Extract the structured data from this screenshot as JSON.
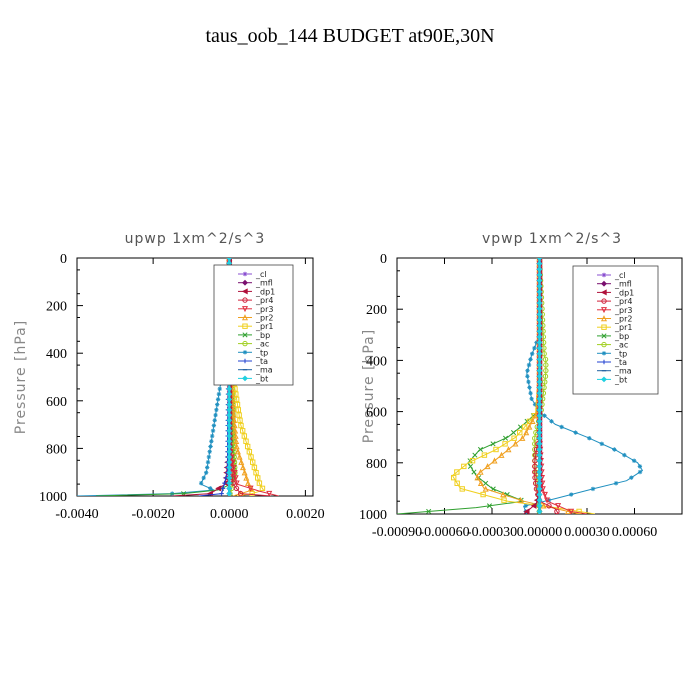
{
  "page_title": "taus_oob_144  BUDGET at90E,30N",
  "legend_entries": [
    {
      "name": "_cl",
      "color": "#8a4fd0",
      "marker": "star"
    },
    {
      "name": "_mfl",
      "color": "#7a0f6e",
      "marker": "diamond"
    },
    {
      "name": "_dp1",
      "color": "#b0103a",
      "marker": "tri-left"
    },
    {
      "name": "_pr4",
      "color": "#d0203a",
      "marker": "circle"
    },
    {
      "name": "_pr3",
      "color": "#e03040",
      "marker": "tri-down"
    },
    {
      "name": "_pr2",
      "color": "#f0a020",
      "marker": "tri-up"
    },
    {
      "name": "_pr1",
      "color": "#f0d020",
      "marker": "square"
    },
    {
      "name": "_bp",
      "color": "#30a030",
      "marker": "x"
    },
    {
      "name": "_ac",
      "color": "#a0d020",
      "marker": "circle"
    },
    {
      "name": "_tp",
      "color": "#2090c0",
      "marker": "star"
    },
    {
      "name": "_ta",
      "color": "#2040d0",
      "marker": "plus"
    },
    {
      "name": "_ma",
      "color": "#2060a0",
      "marker": "dash"
    },
    {
      "name": "_bt",
      "color": "#20d0e0",
      "marker": "diamond"
    }
  ],
  "chart_data": [
    {
      "type": "line",
      "title": "upwp   1xm^2/s^3",
      "xlabel": "",
      "ylabel": "Pressure [hPa]",
      "xlim": [
        -0.004,
        0.0022
      ],
      "ylim": [
        1000,
        0
      ],
      "x_tick_labels": [
        "-0.0040",
        "-0.0020",
        "0.0000",
        "0.0020"
      ],
      "x_ticks": [
        -0.004,
        -0.002,
        0.0,
        0.002
      ],
      "y_tick_labels": [
        "0",
        "200",
        "400",
        "600",
        "800",
        "1000"
      ],
      "y_ticks": [
        0,
        200,
        400,
        600,
        800,
        1000
      ],
      "legend": "top-right",
      "series": [
        {
          "name": "_tp",
          "pressure": [
            0,
            200,
            400,
            500,
            600,
            700,
            800,
            900,
            950,
            975,
            990,
            1000
          ],
          "values": [
            0,
            0,
            -0.0001,
            -0.0002,
            -0.0003,
            -0.0004,
            -0.0005,
            -0.0006,
            -0.00075,
            -0.0004,
            -0.0015,
            -0.004
          ]
        },
        {
          "name": "_bp",
          "pressure": [
            0,
            300,
            500,
            600,
            700,
            800,
            900,
            950,
            975,
            990,
            1000
          ],
          "values": [
            0,
            0,
            5e-05,
            0.0001,
            0.0001,
            0.0001,
            0.00015,
            5e-05,
            -0.0003,
            -0.0012,
            -0.0035
          ]
        },
        {
          "name": "_ac",
          "pressure": [
            0,
            400,
            500,
            600,
            700,
            800,
            900,
            950,
            975,
            1000
          ],
          "values": [
            0,
            2e-05,
            5e-05,
            0.0001,
            0.0001,
            0.00012,
            0.00015,
            0.0001,
            5e-05,
            0.0
          ]
        },
        {
          "name": "_pr1",
          "pressure": [
            0,
            400,
            500,
            600,
            700,
            800,
            900,
            950,
            975,
            990,
            1000
          ],
          "values": [
            0,
            5e-05,
            0.0001,
            0.0002,
            0.0003,
            0.0005,
            0.0007,
            0.0008,
            0.0009,
            0.0006,
            0.0002
          ]
        },
        {
          "name": "_pr2",
          "pressure": [
            0,
            400,
            600,
            800,
            900,
            950,
            975,
            1000
          ],
          "values": [
            0,
            2e-05,
            8e-05,
            0.0002,
            0.0004,
            0.0005,
            0.0006,
            0.0001
          ]
        },
        {
          "name": "_pr3",
          "pressure": [
            0,
            800,
            950,
            980,
            1000
          ],
          "values": [
            0,
            2e-05,
            0.0002,
            0.0008,
            0.0013
          ]
        },
        {
          "name": "_pr4",
          "pressure": [
            0,
            800,
            950,
            990,
            1000
          ],
          "values": [
            0,
            1e-05,
            0.0001,
            0.0003,
            0.0011
          ]
        },
        {
          "name": "_dp1",
          "pressure": [
            0,
            800,
            950,
            990,
            1000
          ],
          "values": [
            0,
            -1e-05,
            -0.0001,
            -0.0005,
            -0.0015
          ]
        },
        {
          "name": "_ta",
          "pressure": [
            0,
            900,
            990,
            1000
          ],
          "values": [
            0,
            -5e-05,
            -0.0002,
            -0.0008
          ]
        },
        {
          "name": "_mfl",
          "pressure": [
            0,
            1000
          ],
          "values": [
            0,
            0
          ]
        },
        {
          "name": "_cl",
          "pressure": [
            0,
            1000
          ],
          "values": [
            0,
            0
          ]
        },
        {
          "name": "_ma",
          "pressure": [
            0,
            1000
          ],
          "values": [
            0,
            0
          ]
        },
        {
          "name": "_bt",
          "pressure": [
            0,
            1000
          ],
          "values": [
            0,
            0
          ]
        }
      ]
    },
    {
      "type": "line",
      "title": "vpwp   1xm^2/s^3",
      "xlabel": "",
      "ylabel": "Pressure [hPa]",
      "xlim": [
        -0.0009,
        0.0009
      ],
      "ylim": [
        1000,
        0
      ],
      "x_tick_labels": [
        "-0.00090",
        "-0.00060",
        "-0.00030",
        "0.00000",
        "0.00030",
        "0.00060"
      ],
      "x_ticks": [
        -0.0009,
        -0.0006,
        -0.0003,
        0.0,
        0.0003,
        0.0006
      ],
      "y_tick_labels": [
        "0",
        "200",
        "400",
        "600",
        "800",
        "1000"
      ],
      "y_ticks": [
        0,
        200,
        400,
        600,
        800,
        1000
      ],
      "legend": "top-right",
      "series": [
        {
          "name": "_tp",
          "pressure": [
            0,
            300,
            380,
            450,
            550,
            600,
            650,
            700,
            750,
            800,
            830,
            870,
            900,
            940,
            970,
            1000
          ],
          "values": [
            0,
            0,
            -5e-05,
            -8e-05,
            -5e-05,
            0.0,
            0.0001,
            0.0003,
            0.00048,
            0.00062,
            0.00065,
            0.00055,
            0.00035,
            0.0001,
            -0.0001,
            -8e-05
          ]
        },
        {
          "name": "_bp",
          "pressure": [
            0,
            500,
            600,
            650,
            700,
            750,
            800,
            850,
            900,
            950,
            975,
            1000
          ],
          "values": [
            0,
            0.0,
            -1e-05,
            -0.0001,
            -0.0002,
            -0.00038,
            -0.00045,
            -0.0004,
            -0.0003,
            -0.0001,
            -0.0004,
            -0.0009
          ]
        },
        {
          "name": "_pr1",
          "pressure": [
            0,
            500,
            600,
            650,
            700,
            750,
            800,
            850,
            900,
            950,
            975,
            1000
          ],
          "values": [
            0,
            0.0,
            -1e-05,
            -8e-05,
            -0.00015,
            -0.00028,
            -0.00045,
            -0.00055,
            -0.0005,
            -0.0002,
            0.0001,
            0.00035
          ]
        },
        {
          "name": "_pr2",
          "pressure": [
            0,
            500,
            600,
            700,
            800,
            850,
            900,
            950,
            1000
          ],
          "values": [
            0,
            0.0,
            -1e-05,
            -0.0001,
            -0.0003,
            -0.0004,
            -0.00035,
            -0.0001,
            0.00025
          ]
        },
        {
          "name": "_ac",
          "pressure": [
            0,
            380,
            400,
            450,
            500,
            550,
            600,
            650,
            700,
            800,
            900,
            1000
          ],
          "values": [
            0,
            3e-05,
            4e-05,
            4e-05,
            3e-05,
            2e-05,
            1e-05,
            -1e-05,
            -3e-05,
            -3e-05,
            -1e-05,
            0.0
          ]
        },
        {
          "name": "_pr4",
          "pressure": [
            0,
            700,
            750,
            800,
            850,
            900,
            950,
            980,
            1000
          ],
          "values": [
            0,
            0.0,
            -2e-05,
            -3e-05,
            -3e-05,
            -2e-05,
            0.0,
            0.0001,
            0.00012
          ]
        },
        {
          "name": "_pr3",
          "pressure": [
            0,
            700,
            800,
            900,
            950,
            990,
            1000
          ],
          "values": [
            0,
            0.0,
            1e-05,
            2e-05,
            5e-05,
            0.0002,
            0.0003
          ]
        },
        {
          "name": "_dp1",
          "pressure": [
            0,
            900,
            960,
            990,
            1000
          ],
          "values": [
            0,
            0.0,
            -2e-05,
            -8e-05,
            -0.0001
          ]
        },
        {
          "name": "_ta",
          "pressure": [
            0,
            1000
          ],
          "values": [
            0,
            0
          ]
        },
        {
          "name": "_mfl",
          "pressure": [
            0,
            1000
          ],
          "values": [
            0,
            0
          ]
        },
        {
          "name": "_cl",
          "pressure": [
            0,
            1000
          ],
          "values": [
            0,
            0
          ]
        },
        {
          "name": "_ma",
          "pressure": [
            0,
            1000
          ],
          "values": [
            0,
            0
          ]
        },
        {
          "name": "_bt",
          "pressure": [
            0,
            1000
          ],
          "values": [
            0,
            0
          ]
        }
      ]
    }
  ]
}
